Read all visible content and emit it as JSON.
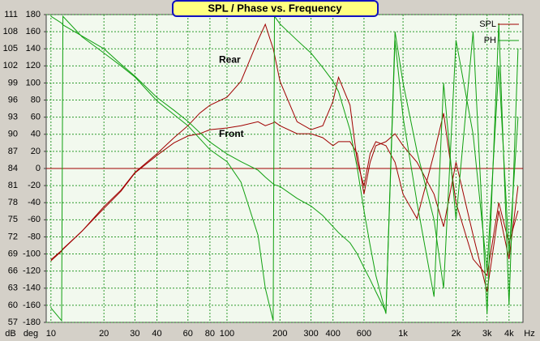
{
  "chart_data": {
    "type": "line",
    "title": "SPL / Phase vs. Frequency",
    "xlabel": "Hz",
    "ylabel": "dB",
    "y2label": "deg",
    "xscale": "log",
    "grid": true,
    "legend": "top-right",
    "x": [
      10,
      11.5,
      11.7,
      15,
      20,
      25,
      30,
      40,
      50,
      60,
      70,
      80,
      100,
      120,
      150,
      165,
      183,
      186,
      200,
      250,
      300,
      350,
      400,
      430,
      500,
      550,
      600,
      650,
      700,
      800,
      900,
      1000,
      1200,
      1500,
      1700,
      2000,
      2500,
      3000,
      3500,
      4000,
      4500
    ],
    "xlim": [
      9.4,
      4800
    ],
    "xticks": [
      10,
      20,
      30,
      40,
      60,
      80,
      100,
      200,
      300,
      400,
      600,
      {
        "value": 1000,
        "label": "1k"
      },
      {
        "value": 2000,
        "label": "2k"
      },
      {
        "value": 3000,
        "label": "3k"
      },
      {
        "value": 4000,
        "label": "4k"
      }
    ],
    "ylim": [
      57,
      111
    ],
    "yticks": [
      57,
      60,
      63,
      66,
      69,
      72,
      75,
      78,
      81,
      84,
      87,
      90,
      93,
      96,
      99,
      102,
      105,
      108,
      111
    ],
    "y2lim": [
      -180,
      180
    ],
    "y2ticks": [
      -180,
      -160,
      -140,
      -120,
      -100,
      -80,
      -60,
      -40,
      -20,
      0,
      20,
      40,
      60,
      80,
      100,
      120,
      140,
      160,
      180
    ],
    "series": [
      {
        "name": "SPL",
        "color": "#a00000",
        "axis": "y",
        "values": [
          67.8,
          69.5,
          69.8,
          73,
          77.3,
          80.2,
          83.3,
          86.6,
          89.4,
          91.5,
          93.7,
          95.1,
          96.5,
          99.3,
          106.5,
          109.3,
          105,
          104,
          99.3,
          92.2,
          90.8,
          91.5,
          95.8,
          100,
          95.1,
          85.1,
          80.9,
          86.6,
          88.7,
          88,
          85.1,
          79.5,
          75.2,
          86.6,
          93.7,
          78,
          68.1,
          65.2,
          78,
          70.9,
          76.6
        ]
      },
      {
        "color": "#a00000",
        "axis": "y",
        "values": [
          68,
          69.6,
          69.9,
          73,
          77,
          80,
          83.2,
          86.3,
          88.5,
          89.7,
          90.1,
          90.8,
          91.1,
          91.5,
          92.2,
          91.5,
          92,
          92.2,
          91.5,
          90.1,
          90.1,
          89.4,
          88,
          88.7,
          88.7,
          86.6,
          79.5,
          85.1,
          88,
          88.7,
          90.1,
          88,
          85.1,
          79.5,
          73.8,
          85.1,
          72.3,
          62.4,
          76.6,
          68.1,
          80.9
        ]
      },
      {
        "name": "PH",
        "color": "#10a010",
        "axis": "y2",
        "values": [
          178,
          170,
          168,
          155,
          140,
          122,
          108,
          83,
          68,
          55,
          42,
          31,
          17,
          8,
          -2,
          -10,
          -18,
          -19,
          -21,
          -35,
          -44,
          -55,
          -68,
          -75,
          -87,
          -100,
          -116,
          -130,
          -144,
          -168,
          160,
          100,
          20,
          -60,
          -140,
          150,
          40,
          -120,
          120,
          -100,
          60
        ]
      },
      {
        "color": "#10a010",
        "axis": "y2",
        "values": [
          -163,
          -178,
          178,
          154,
          135,
          120,
          107,
          79,
          63,
          50,
          35,
          22,
          8,
          -16,
          -78,
          -140,
          -178,
          178,
          169,
          150,
          135,
          118,
          102,
          90,
          45,
          0,
          -49,
          -90,
          -125,
          -170,
          150,
          60,
          -40,
          -150,
          100,
          -60,
          160,
          -170,
          170,
          -160,
          140
        ]
      }
    ],
    "annotations": [
      {
        "text": "Rear",
        "x": 90,
        "y": 103
      },
      {
        "text": "Front",
        "x": 90,
        "y": 90
      }
    ]
  }
}
